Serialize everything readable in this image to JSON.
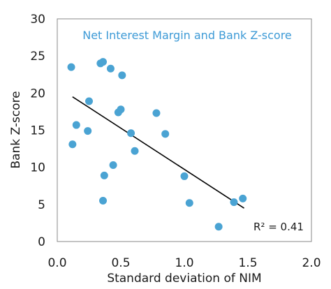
{
  "chart_data": {
    "type": "scatter",
    "title": "Net Interest Margin and Bank Z-score",
    "xlabel": "Standard deviation of NIM",
    "ylabel": "Bank Z-score",
    "xlim": [
      0,
      2
    ],
    "ylim": [
      0,
      30
    ],
    "x_ticks": [
      "0.0",
      "0.5",
      "1.0",
      "1.5",
      "2.0"
    ],
    "y_ticks": [
      "0",
      "5",
      "10",
      "15",
      "20",
      "25",
      "30"
    ],
    "grid": false,
    "legend": "none",
    "series": [
      {
        "color": "#4aa3d3",
        "points": [
          {
            "x": 0.11,
            "y": 23.5
          },
          {
            "x": 0.12,
            "y": 13.1
          },
          {
            "x": 0.15,
            "y": 15.7
          },
          {
            "x": 0.24,
            "y": 14.9
          },
          {
            "x": 0.25,
            "y": 18.9
          },
          {
            "x": 0.34,
            "y": 24.0
          },
          {
            "x": 0.36,
            "y": 24.2
          },
          {
            "x": 0.36,
            "y": 5.5
          },
          {
            "x": 0.37,
            "y": 8.9
          },
          {
            "x": 0.42,
            "y": 23.3
          },
          {
            "x": 0.44,
            "y": 10.3
          },
          {
            "x": 0.48,
            "y": 17.4
          },
          {
            "x": 0.5,
            "y": 17.8
          },
          {
            "x": 0.51,
            "y": 22.4
          },
          {
            "x": 0.58,
            "y": 14.6
          },
          {
            "x": 0.61,
            "y": 12.2
          },
          {
            "x": 0.78,
            "y": 17.3
          },
          {
            "x": 0.85,
            "y": 14.5
          },
          {
            "x": 1.0,
            "y": 8.8
          },
          {
            "x": 1.04,
            "y": 5.2
          },
          {
            "x": 1.27,
            "y": 2.0
          },
          {
            "x": 1.39,
            "y": 5.3
          },
          {
            "x": 1.46,
            "y": 5.8
          }
        ]
      }
    ],
    "trendline": {
      "color": "#000000",
      "x": [
        0.12,
        1.47
      ],
      "y": [
        19.5,
        4.5
      ],
      "label": "R² = 0.41"
    }
  }
}
